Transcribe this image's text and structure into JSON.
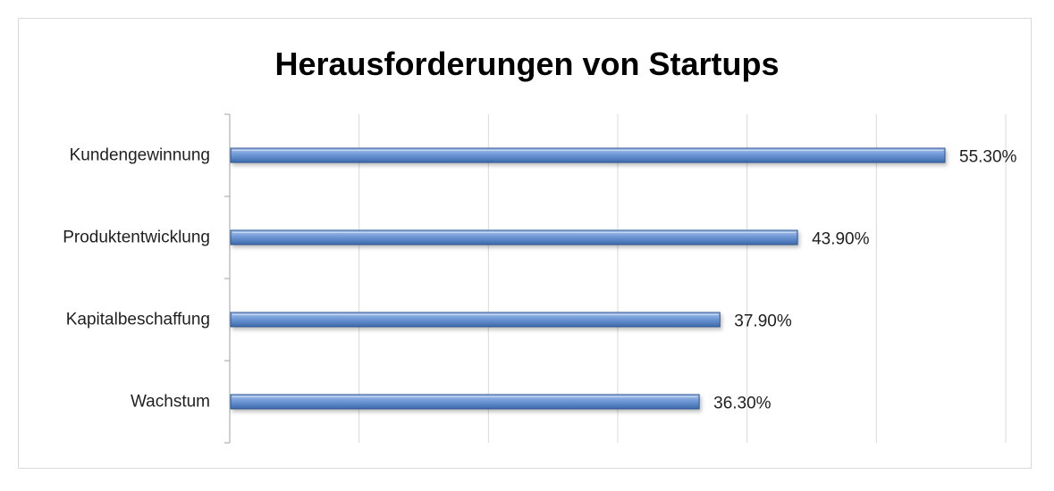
{
  "chart_data": {
    "type": "bar",
    "orientation": "horizontal",
    "title": "Herausforderungen von Startups",
    "categories": [
      "Kundengewinnung",
      "Produktentwicklung",
      "Kapitalbeschaffung",
      "Wachstum"
    ],
    "values": [
      55.3,
      43.9,
      37.9,
      36.3
    ],
    "data_labels": [
      "55.30%",
      "43.90%",
      "37.90%",
      "36.30%"
    ],
    "value_unit": "%",
    "xlim": [
      0,
      60
    ],
    "grid_step": 10,
    "x_tick_labels_shown": false,
    "grid": true,
    "legend": "none",
    "colors": {
      "bar_light": "#a9c4ea",
      "bar_mid": "#6f98d6",
      "bar_dark": "#3d6aab",
      "bar_edge": "#2e5590",
      "gridline": "#d9d9d9",
      "axis": "#bfbfbf"
    }
  }
}
